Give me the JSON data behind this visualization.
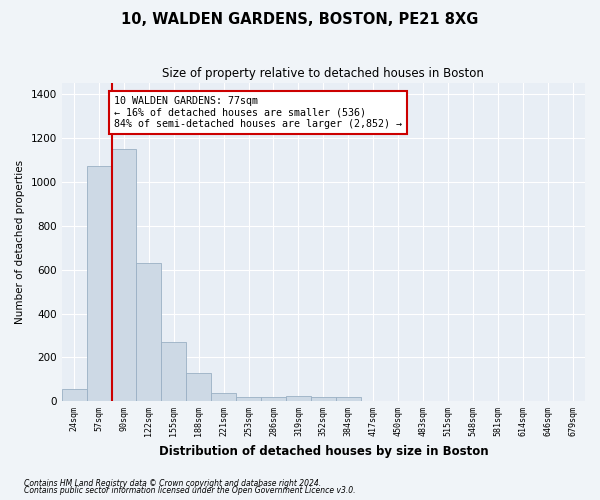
{
  "title1": "10, WALDEN GARDENS, BOSTON, PE21 8XG",
  "title2": "Size of property relative to detached houses in Boston",
  "xlabel": "Distribution of detached houses by size in Boston",
  "ylabel": "Number of detached properties",
  "categories": [
    "24sqm",
    "57sqm",
    "90sqm",
    "122sqm",
    "155sqm",
    "188sqm",
    "221sqm",
    "253sqm",
    "286sqm",
    "319sqm",
    "352sqm",
    "384sqm",
    "417sqm",
    "450sqm",
    "483sqm",
    "515sqm",
    "548sqm",
    "581sqm",
    "614sqm",
    "646sqm",
    "679sqm"
  ],
  "values": [
    55,
    1070,
    1150,
    630,
    270,
    130,
    38,
    18,
    18,
    22,
    18,
    18,
    0,
    0,
    0,
    0,
    0,
    0,
    0,
    0,
    0
  ],
  "bar_color": "#cdd9e5",
  "bar_edge_color": "#9ab0c4",
  "vline_x": 1.5,
  "vline_color": "#cc0000",
  "annotation_text": "10 WALDEN GARDENS: 77sqm\n← 16% of detached houses are smaller (536)\n84% of semi-detached houses are larger (2,852) →",
  "annotation_box_color": "#ffffff",
  "annotation_box_edge": "#cc0000",
  "ylim": [
    0,
    1450
  ],
  "yticks": [
    0,
    200,
    400,
    600,
    800,
    1000,
    1200,
    1400
  ],
  "footnote1": "Contains HM Land Registry data © Crown copyright and database right 2024.",
  "footnote2": "Contains public sector information licensed under the Open Government Licence v3.0.",
  "bg_color": "#f0f4f8",
  "plot_bg_color": "#e8eef5",
  "grid_color": "#ffffff",
  "title1_fontsize": 10.5,
  "title2_fontsize": 8.5
}
